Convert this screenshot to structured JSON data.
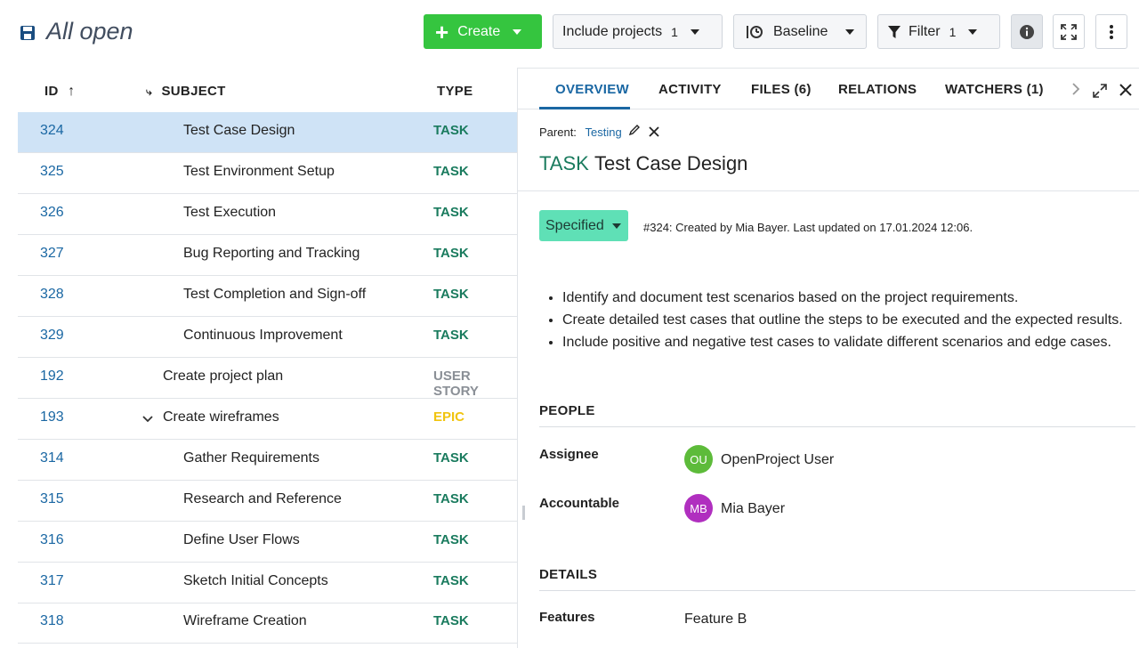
{
  "header": {
    "title": "All open",
    "create_label": "Create",
    "include_label": "Include projects",
    "include_count": "1",
    "baseline_label": "Baseline",
    "filter_label": "Filter",
    "filter_count": "1"
  },
  "table": {
    "columns": {
      "id": "ID",
      "subject": "SUBJECT",
      "type": "TYPE"
    },
    "rows": [
      {
        "id": "324",
        "subject": "Test Case Design",
        "type": "TASK"
      },
      {
        "id": "325",
        "subject": "Test Environment Setup",
        "type": "TASK"
      },
      {
        "id": "326",
        "subject": "Test Execution",
        "type": "TASK"
      },
      {
        "id": "327",
        "subject": "Bug Reporting and Tracking",
        "type": "TASK"
      },
      {
        "id": "328",
        "subject": "Test Completion and Sign-off",
        "type": "TASK"
      },
      {
        "id": "329",
        "subject": "Continuous Improvement",
        "type": "TASK"
      },
      {
        "id": "192",
        "subject": "Create project plan",
        "type": "USER STORY"
      },
      {
        "id": "193",
        "subject": "Create wireframes",
        "type": "EPIC"
      },
      {
        "id": "314",
        "subject": "Gather Requirements",
        "type": "TASK"
      },
      {
        "id": "315",
        "subject": "Research and Reference",
        "type": "TASK"
      },
      {
        "id": "316",
        "subject": "Define User Flows",
        "type": "TASK"
      },
      {
        "id": "317",
        "subject": "Sketch Initial Concepts",
        "type": "TASK"
      },
      {
        "id": "318",
        "subject": "Wireframe Creation",
        "type": "TASK"
      }
    ]
  },
  "details": {
    "tabs": {
      "overview": "OVERVIEW",
      "activity": "ACTIVITY",
      "files": "FILES (6)",
      "relations": "RELATIONS",
      "watchers": "WATCHERS (1)"
    },
    "parent_label": "Parent:",
    "parent_link": "Testing",
    "type": "TASK",
    "title": "Test Case Design",
    "status": "Specified",
    "meta": "#324: Created by Mia Bayer. Last updated on 17.01.2024 12:06.",
    "description": [
      "Identify and document test scenarios based on the project requirements.",
      "Create detailed test cases that outline the steps to be executed and the expected results.",
      "Include positive and negative test cases to validate different scenarios and edge cases."
    ],
    "people_title": "PEOPLE",
    "assignee_label": "Assignee",
    "assignee_initials": "OU",
    "assignee_name": "OpenProject User",
    "accountable_label": "Accountable",
    "accountable_initials": "MB",
    "accountable_name": "Mia Bayer",
    "details_title": "DETAILS",
    "features_label": "Features",
    "features_value": "Feature B"
  },
  "colors": {
    "create_button": "#35c53f",
    "task": "#1a7b5e",
    "epic": "#f1c40f",
    "user_story": "#8a8f96",
    "link": "#1a67a3",
    "status_specified": "#5fe0b6",
    "avatar_ou": "#5dbb3a",
    "avatar_mb": "#b02fbf",
    "selected_row": "#cfe3f6"
  }
}
